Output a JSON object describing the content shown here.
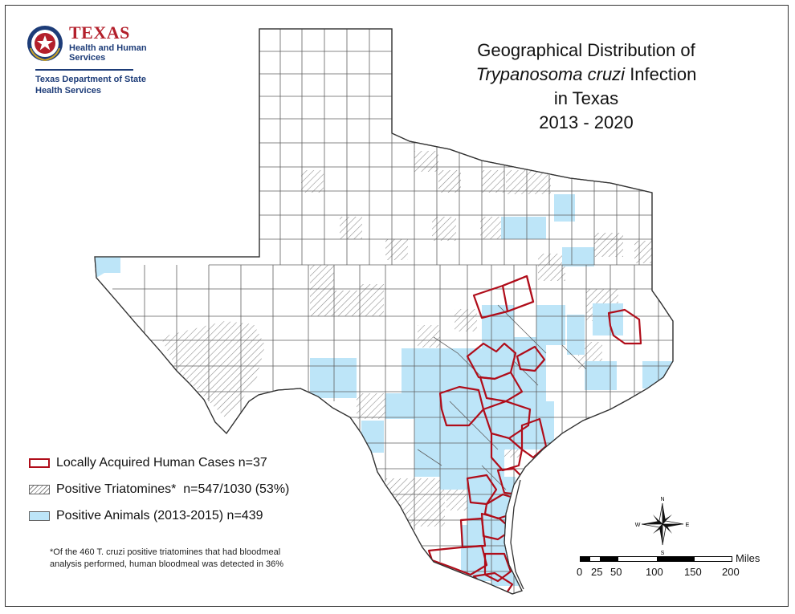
{
  "logo": {
    "agency_line1": "TEXAS",
    "agency_line2a": "Health and Human",
    "agency_line2b": "Services",
    "dept_line1": "Texas Department of State",
    "dept_line2": "Health Services"
  },
  "title": {
    "line1": "Geographical Distribution of",
    "line2_italic": "Trypanosoma cruzi",
    "line2_rest": " Infection",
    "line3": "in Texas",
    "line4": "2013 - 2020"
  },
  "legend": {
    "cases": "Locally Acquired Human Cases n=37",
    "triatomines": "Positive Triatomines*  n=547/1030 (53%)",
    "animals": "Positive Animals (2013-2015) n=439"
  },
  "footnote": {
    "line1": "*Of the 460 T. cruzi positive triatomines that had bloodmeal",
    "line2": "analysis performed, human bloodmeal was detected in 36%"
  },
  "compass": {
    "n": "N",
    "s": "S",
    "e": "E",
    "w": "W"
  },
  "scale": {
    "unit": "Miles",
    "ticks": [
      "0",
      "25",
      "50",
      "100",
      "150",
      "200"
    ]
  },
  "colors": {
    "case_outline": "#b00d1a",
    "animal_fill": "#bde5f8",
    "county_stroke": "#555555",
    "hatch": "#888888"
  }
}
